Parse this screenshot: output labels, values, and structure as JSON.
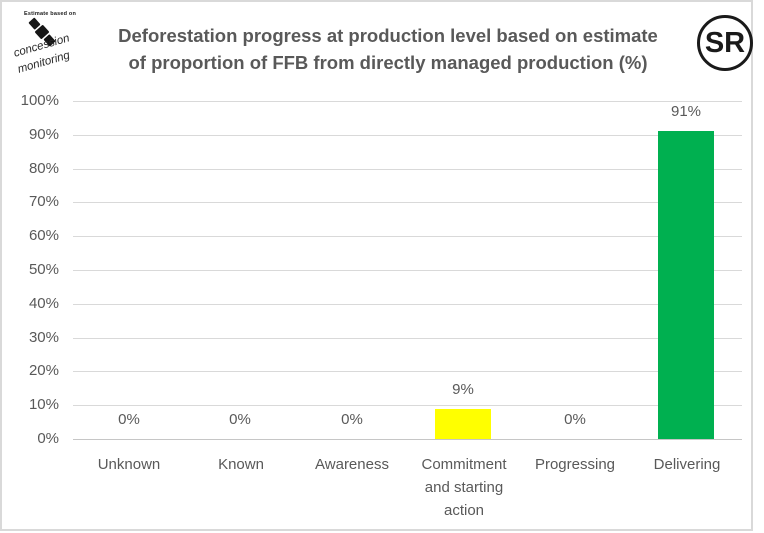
{
  "logo": {
    "tagline": "Estimate based on",
    "word1": "concession",
    "word2": "monitoring"
  },
  "badge": {
    "text": "SR"
  },
  "chart_data": {
    "type": "bar",
    "title": "Deforestation progress at production level based on estimate of proportion of FFB from directly managed production (%)",
    "title_lines": [
      "Deforestation progress at production level based on estimate",
      "of proportion of FFB from directly managed production (%)"
    ],
    "categories": [
      "Unknown",
      "Known",
      "Awareness",
      "Commitment and starting action",
      "Progressing",
      "Delivering"
    ],
    "values": [
      0,
      0,
      0,
      9,
      0,
      91
    ],
    "data_labels": [
      "0%",
      "0%",
      "0%",
      "9%",
      "0%",
      "91%"
    ],
    "bar_colors": [
      null,
      null,
      null,
      "#FFFF00",
      null,
      "#00B050"
    ],
    "xlabel": "",
    "ylabel": "",
    "ylim": [
      0,
      100
    ],
    "ytick_step": 10,
    "ytick_labels": [
      "0%",
      "10%",
      "20%",
      "30%",
      "40%",
      "50%",
      "60%",
      "70%",
      "80%",
      "90%",
      "100%"
    ],
    "grid": true,
    "legend": false
  },
  "colors": {
    "bar_yellow": "#FFFF00",
    "bar_green": "#00B050",
    "grid": "#D9D9D9",
    "axis_line": "#C6C6C6",
    "text": "#595959",
    "frame_border": "#D9D9D9",
    "badge_ink": "#1a1a1a"
  }
}
